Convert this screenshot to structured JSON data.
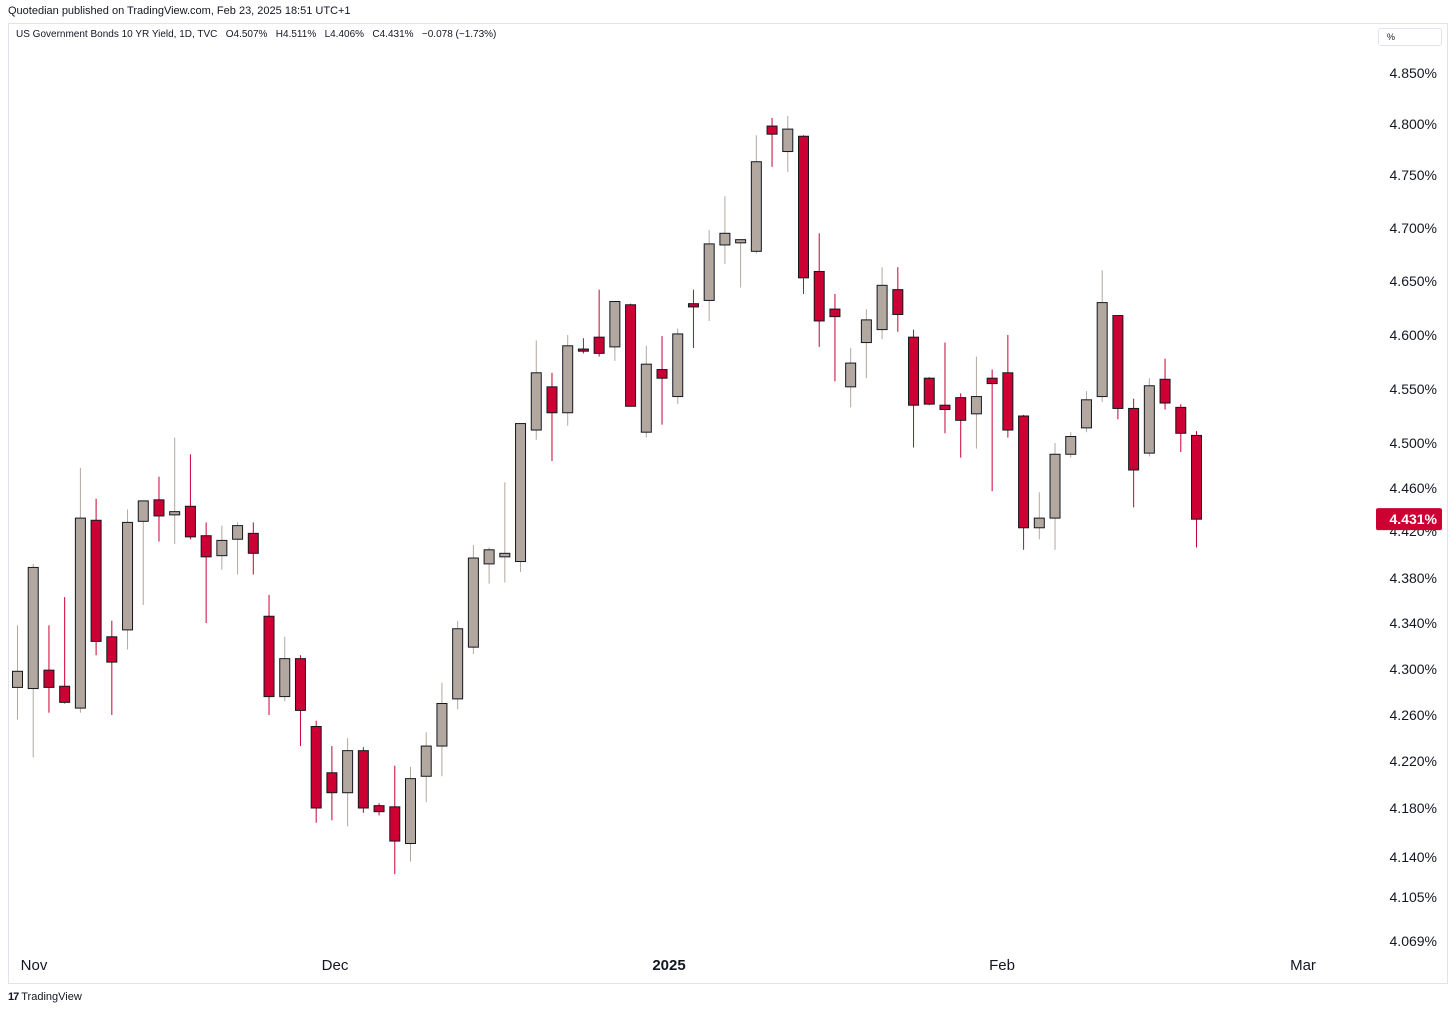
{
  "header": {
    "text": "Quotedian published on TradingView.com, Feb 23, 2025 18:51 UTC+1"
  },
  "legend": {
    "symbol": "US Government Bonds 10 YR Yield, 1D, TVC",
    "open_label": "O",
    "open": "4.507%",
    "high_label": "H",
    "high": "4.511%",
    "low_label": "L",
    "low": "4.406%",
    "close_label": "C",
    "close": "4.431%",
    "change": "−0.078 (−1.73%)"
  },
  "unit_selector": "%",
  "footer": {
    "logo": "17",
    "brand": "TradingView"
  },
  "colors": {
    "up": "#b2a89f",
    "down": "#cc0033",
    "border": "#131722",
    "label_bg": "#cc0033",
    "label_text": "#ffffff"
  },
  "chart_data": {
    "type": "candlestick",
    "ylabel": "",
    "ylim": [
      4.055,
      4.875
    ],
    "y_ticks": [
      {
        "value": 4.069,
        "label": "4.069%"
      },
      {
        "value": 4.105,
        "label": "4.105%"
      },
      {
        "value": 4.14,
        "label": "4.140%"
      },
      {
        "value": 4.18,
        "label": "4.180%"
      },
      {
        "value": 4.22,
        "label": "4.220%"
      },
      {
        "value": 4.26,
        "label": "4.260%"
      },
      {
        "value": 4.3,
        "label": "4.300%"
      },
      {
        "value": 4.34,
        "label": "4.340%"
      },
      {
        "value": 4.38,
        "label": "4.380%"
      },
      {
        "value": 4.42,
        "label": "4.420%"
      },
      {
        "value": 4.46,
        "label": "4.460%"
      },
      {
        "value": 4.5,
        "label": "4.500%"
      },
      {
        "value": 4.55,
        "label": "4.550%"
      },
      {
        "value": 4.6,
        "label": "4.600%"
      },
      {
        "value": 4.65,
        "label": "4.650%"
      },
      {
        "value": 4.7,
        "label": "4.700%"
      },
      {
        "value": 4.75,
        "label": "4.750%"
      },
      {
        "value": 4.8,
        "label": "4.800%"
      },
      {
        "value": 4.85,
        "label": "4.850%"
      }
    ],
    "x_ticks": [
      {
        "date": "2024-11-01",
        "label": "Nov"
      },
      {
        "date": "2024-12-02",
        "label": "Dec"
      },
      {
        "date": "2025-01-02",
        "label": "2025"
      },
      {
        "date": "2025-02-03",
        "label": "Feb"
      },
      {
        "date": "2025-03-03",
        "label": "Mar"
      }
    ],
    "last_price": {
      "value": 4.431,
      "label": "4.431%"
    },
    "candles": [
      {
        "date": "2024-11-01",
        "o": 4.284,
        "h": 4.338,
        "l": 4.256,
        "c": 4.298
      },
      {
        "date": "2024-11-04",
        "o": 4.283,
        "h": 4.392,
        "l": 4.223,
        "c": 4.389
      },
      {
        "date": "2024-11-05",
        "o": 4.299,
        "h": 4.338,
        "l": 4.262,
        "c": 4.284
      },
      {
        "date": "2024-11-06",
        "o": 4.285,
        "h": 4.363,
        "l": 4.27,
        "c": 4.271
      },
      {
        "date": "2024-11-07",
        "o": 4.266,
        "h": 4.478,
        "l": 4.262,
        "c": 4.432
      },
      {
        "date": "2024-11-08",
        "o": 4.43,
        "h": 4.45,
        "l": 4.312,
        "c": 4.324
      },
      {
        "date": "2024-11-11",
        "o": 4.328,
        "h": 4.342,
        "l": 4.26,
        "c": 4.306
      },
      {
        "date": "2024-11-12",
        "o": 4.334,
        "h": 4.44,
        "l": 4.317,
        "c": 4.428
      },
      {
        "date": "2024-11-13",
        "o": 4.429,
        "h": 4.447,
        "l": 4.356,
        "c": 4.448
      },
      {
        "date": "2024-11-14",
        "o": 4.449,
        "h": 4.47,
        "l": 4.411,
        "c": 4.434
      },
      {
        "date": "2024-11-15",
        "o": 4.435,
        "h": 4.505,
        "l": 4.409,
        "c": 4.438
      },
      {
        "date": "2024-11-18",
        "o": 4.443,
        "h": 4.49,
        "l": 4.413,
        "c": 4.415
      },
      {
        "date": "2024-11-19",
        "o": 4.416,
        "h": 4.428,
        "l": 4.34,
        "c": 4.398
      },
      {
        "date": "2024-11-20",
        "o": 4.399,
        "h": 4.425,
        "l": 4.387,
        "c": 4.412
      },
      {
        "date": "2024-11-21",
        "o": 4.413,
        "h": 4.428,
        "l": 4.383,
        "c": 4.425
      },
      {
        "date": "2024-11-22",
        "o": 4.418,
        "h": 4.428,
        "l": 4.383,
        "c": 4.401
      },
      {
        "date": "2024-11-25",
        "o": 4.346,
        "h": 4.365,
        "l": 4.26,
        "c": 4.276
      },
      {
        "date": "2024-11-26",
        "o": 4.276,
        "h": 4.328,
        "l": 4.272,
        "c": 4.309
      },
      {
        "date": "2024-11-27",
        "o": 4.309,
        "h": 4.312,
        "l": 4.233,
        "c": 4.264
      },
      {
        "date": "2024-11-29",
        "o": 4.25,
        "h": 4.255,
        "l": 4.168,
        "c": 4.18
      },
      {
        "date": "2024-12-02",
        "o": 4.21,
        "h": 4.233,
        "l": 4.17,
        "c": 4.193
      },
      {
        "date": "2024-12-03",
        "o": 4.193,
        "h": 4.24,
        "l": 4.165,
        "c": 4.229
      },
      {
        "date": "2024-12-04",
        "o": 4.229,
        "h": 4.232,
        "l": 4.176,
        "c": 4.18
      },
      {
        "date": "2024-12-05",
        "o": 4.182,
        "h": 4.184,
        "l": 4.174,
        "c": 4.177
      },
      {
        "date": "2024-12-06",
        "o": 4.181,
        "h": 4.216,
        "l": 4.125,
        "c": 4.153
      },
      {
        "date": "2024-12-09",
        "o": 4.151,
        "h": 4.215,
        "l": 4.136,
        "c": 4.205
      },
      {
        "date": "2024-12-10",
        "o": 4.207,
        "h": 4.245,
        "l": 4.185,
        "c": 4.233
      },
      {
        "date": "2024-12-11",
        "o": 4.233,
        "h": 4.288,
        "l": 4.207,
        "c": 4.27
      },
      {
        "date": "2024-12-12",
        "o": 4.274,
        "h": 4.342,
        "l": 4.265,
        "c": 4.335
      },
      {
        "date": "2024-12-13",
        "o": 4.319,
        "h": 4.408,
        "l": 4.313,
        "c": 4.397
      },
      {
        "date": "2024-12-16",
        "o": 4.392,
        "h": 4.406,
        "l": 4.375,
        "c": 4.404
      },
      {
        "date": "2024-12-17",
        "o": 4.398,
        "h": 4.465,
        "l": 4.376,
        "c": 4.401
      },
      {
        "date": "2024-12-18",
        "o": 4.394,
        "h": 4.518,
        "l": 4.385,
        "c": 4.518
      },
      {
        "date": "2024-12-19",
        "o": 4.512,
        "h": 4.595,
        "l": 4.503,
        "c": 4.565
      },
      {
        "date": "2024-12-20",
        "o": 4.552,
        "h": 4.565,
        "l": 4.484,
        "c": 4.528
      },
      {
        "date": "2024-12-23",
        "o": 4.528,
        "h": 4.6,
        "l": 4.516,
        "c": 4.59
      },
      {
        "date": "2024-12-24",
        "o": 4.587,
        "h": 4.597,
        "l": 4.583,
        "c": 4.585
      },
      {
        "date": "2024-12-26",
        "o": 4.598,
        "h": 4.642,
        "l": 4.58,
        "c": 4.583
      },
      {
        "date": "2024-12-27",
        "o": 4.589,
        "h": 4.631,
        "l": 4.576,
        "c": 4.631
      },
      {
        "date": "2024-12-30",
        "o": 4.628,
        "h": 4.629,
        "l": 4.534,
        "c": 4.534
      },
      {
        "date": "2024-12-31",
        "o": 4.51,
        "h": 4.59,
        "l": 4.505,
        "c": 4.573
      },
      {
        "date": "2025-01-02",
        "o": 4.568,
        "h": 4.599,
        "l": 4.517,
        "c": 4.56
      },
      {
        "date": "2025-01-03",
        "o": 4.543,
        "h": 4.606,
        "l": 4.536,
        "c": 4.601
      },
      {
        "date": "2025-01-06",
        "o": 4.629,
        "h": 4.642,
        "l": 4.588,
        "c": 4.626
      },
      {
        "date": "2025-01-07",
        "o": 4.632,
        "h": 4.698,
        "l": 4.613,
        "c": 4.685
      },
      {
        "date": "2025-01-08",
        "o": 4.684,
        "h": 4.73,
        "l": 4.666,
        "c": 4.695
      },
      {
        "date": "2025-01-09",
        "o": 4.686,
        "h": 4.689,
        "l": 4.644,
        "c": 4.689
      },
      {
        "date": "2025-01-10",
        "o": 4.678,
        "h": 4.789,
        "l": 4.676,
        "c": 4.763
      },
      {
        "date": "2025-01-13",
        "o": 4.798,
        "h": 4.806,
        "l": 4.758,
        "c": 4.79
      },
      {
        "date": "2025-01-14",
        "o": 4.773,
        "h": 4.808,
        "l": 4.753,
        "c": 4.795
      },
      {
        "date": "2025-01-15",
        "o": 4.788,
        "h": 4.789,
        "l": 4.638,
        "c": 4.653
      },
      {
        "date": "2025-01-16",
        "o": 4.659,
        "h": 4.695,
        "l": 4.589,
        "c": 4.613
      },
      {
        "date": "2025-01-17",
        "o": 4.624,
        "h": 4.638,
        "l": 4.557,
        "c": 4.617
      },
      {
        "date": "2025-01-21",
        "o": 4.552,
        "h": 4.588,
        "l": 4.533,
        "c": 4.574
      },
      {
        "date": "2025-01-22",
        "o": 4.593,
        "h": 4.624,
        "l": 4.56,
        "c": 4.614
      },
      {
        "date": "2025-01-23",
        "o": 4.605,
        "h": 4.663,
        "l": 4.596,
        "c": 4.646
      },
      {
        "date": "2025-01-24",
        "o": 4.642,
        "h": 4.663,
        "l": 4.603,
        "c": 4.619
      },
      {
        "date": "2025-01-27",
        "o": 4.598,
        "h": 4.605,
        "l": 4.496,
        "c": 4.535
      },
      {
        "date": "2025-01-28",
        "o": 4.56,
        "h": 4.561,
        "l": 4.535,
        "c": 4.536
      },
      {
        "date": "2025-01-29",
        "o": 4.535,
        "h": 4.593,
        "l": 4.509,
        "c": 4.531
      },
      {
        "date": "2025-01-30",
        "o": 4.542,
        "h": 4.546,
        "l": 4.487,
        "c": 4.521
      },
      {
        "date": "2025-01-31",
        "o": 4.527,
        "h": 4.58,
        "l": 4.495,
        "c": 4.543
      },
      {
        "date": "2025-02-03",
        "o": 4.56,
        "h": 4.568,
        "l": 4.457,
        "c": 4.555
      },
      {
        "date": "2025-02-04",
        "o": 4.565,
        "h": 4.6,
        "l": 4.505,
        "c": 4.512
      },
      {
        "date": "2025-02-05",
        "o": 4.525,
        "h": 4.526,
        "l": 4.404,
        "c": 4.423
      },
      {
        "date": "2025-02-06",
        "o": 4.423,
        "h": 4.456,
        "l": 4.413,
        "c": 4.432
      },
      {
        "date": "2025-02-07",
        "o": 4.432,
        "h": 4.5,
        "l": 4.404,
        "c": 4.49
      },
      {
        "date": "2025-02-10",
        "o": 4.49,
        "h": 4.51,
        "l": 4.487,
        "c": 4.506
      },
      {
        "date": "2025-02-11",
        "o": 4.514,
        "h": 4.548,
        "l": 4.51,
        "c": 4.54
      },
      {
        "date": "2025-02-12",
        "o": 4.543,
        "h": 4.66,
        "l": 4.538,
        "c": 4.63
      },
      {
        "date": "2025-02-13",
        "o": 4.618,
        "h": 4.618,
        "l": 4.522,
        "c": 4.532
      },
      {
        "date": "2025-02-14",
        "o": 4.532,
        "h": 4.541,
        "l": 4.442,
        "c": 4.476
      },
      {
        "date": "2025-02-18",
        "o": 4.491,
        "h": 4.56,
        "l": 4.488,
        "c": 4.553
      },
      {
        "date": "2025-02-19",
        "o": 4.559,
        "h": 4.578,
        "l": 4.531,
        "c": 4.537
      },
      {
        "date": "2025-02-20",
        "o": 4.533,
        "h": 4.536,
        "l": 4.492,
        "c": 4.509
      },
      {
        "date": "2025-02-21",
        "o": 4.507,
        "h": 4.511,
        "l": 4.406,
        "c": 4.431
      }
    ]
  }
}
